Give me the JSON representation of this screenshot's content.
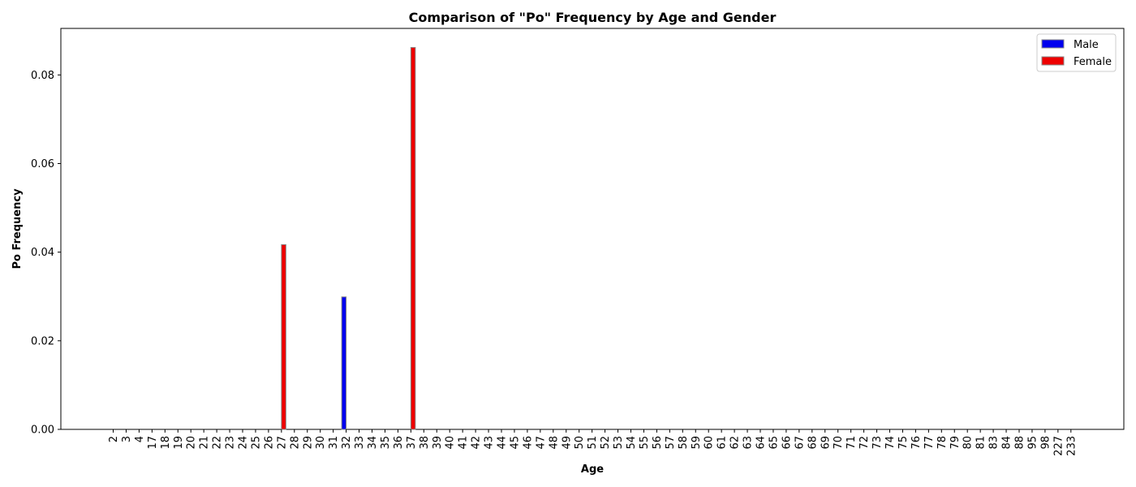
{
  "chart_data": {
    "type": "bar",
    "title": "Comparison of \"Po\" Frequency by Age and Gender",
    "xlabel": "Age",
    "ylabel": "Po Frequency",
    "ylim": [
      0,
      0.0905
    ],
    "yticks": [
      "0.00",
      "0.02",
      "0.04",
      "0.06",
      "0.08"
    ],
    "grid": false,
    "legend_position": "top-right",
    "categories": [
      "2",
      "3",
      "4",
      "17",
      "18",
      "19",
      "20",
      "21",
      "22",
      "23",
      "24",
      "25",
      "26",
      "27",
      "28",
      "29",
      "30",
      "31",
      "32",
      "33",
      "34",
      "35",
      "36",
      "37",
      "38",
      "39",
      "40",
      "41",
      "42",
      "43",
      "44",
      "45",
      "46",
      "47",
      "48",
      "49",
      "50",
      "51",
      "52",
      "53",
      "54",
      "55",
      "56",
      "57",
      "58",
      "59",
      "60",
      "61",
      "62",
      "63",
      "64",
      "65",
      "66",
      "67",
      "68",
      "69",
      "70",
      "71",
      "72",
      "73",
      "74",
      "75",
      "76",
      "77",
      "78",
      "79",
      "80",
      "81",
      "83",
      "84",
      "88",
      "95",
      "98",
      "227",
      "233"
    ],
    "series": [
      {
        "name": "Male",
        "color": "#0000ee",
        "values": {
          "32": 0.0299
        }
      },
      {
        "name": "Female",
        "color": "#ee0000",
        "values": {
          "27": 0.0417,
          "37": 0.0862
        }
      }
    ]
  }
}
